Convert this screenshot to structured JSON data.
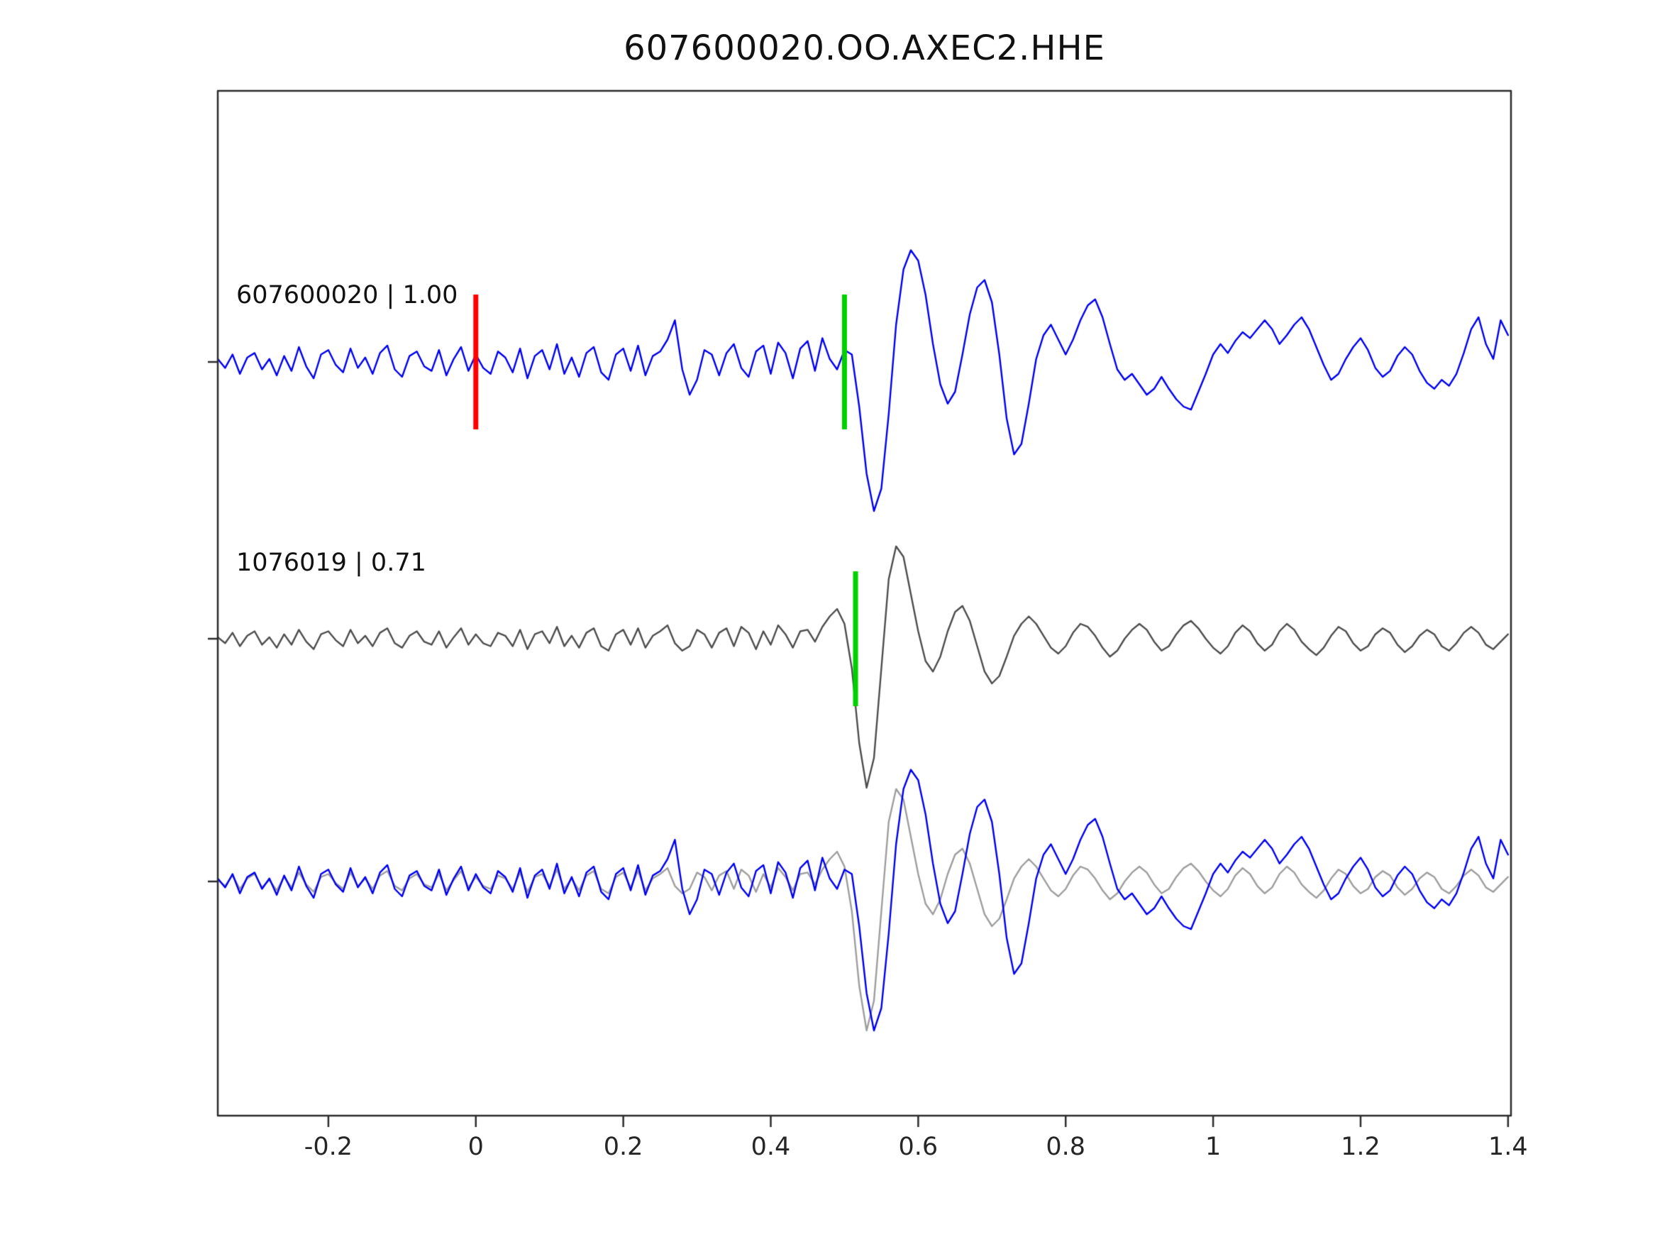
{
  "figure": {
    "background": "#ffffff",
    "axis_color": "#2b2b2b",
    "tick_label_color": "#262626",
    "title_color": "#111111"
  },
  "chart_data": {
    "type": "line",
    "title": "607600020.OO.AXEC2.HHE",
    "xlabel": "",
    "ylabel": "",
    "grid": false,
    "legend": "none",
    "xlim": [
      -0.35,
      1.404
    ],
    "x_ticks": [
      -0.2,
      0,
      0.2,
      0.4,
      0.6,
      0.8,
      1,
      1.2,
      1.4
    ],
    "x_tick_labels": [
      "-0.2",
      "0",
      "0.2",
      "0.4",
      "0.6",
      "0.8",
      "1",
      "1.2",
      "1.4"
    ],
    "x_start": -0.35,
    "dt": 0.01,
    "panels": [
      {
        "id": "top",
        "label": "607600020 | 1.00",
        "station_id": "607600020",
        "correlation": 1.0,
        "traces": [
          {
            "series": "reference",
            "color": "#0000ee"
          }
        ],
        "markers": [
          {
            "x": 0.0,
            "color": "#ff0000"
          },
          {
            "x": 0.5,
            "color": "#00cf00"
          }
        ]
      },
      {
        "id": "middle",
        "label": "1076019 | 0.71",
        "station_id": "1076019",
        "correlation": 0.71,
        "traces": [
          {
            "series": "match",
            "color": "#4d4d4d"
          }
        ],
        "markers": [
          {
            "x": 0.515,
            "color": "#00cf00"
          }
        ]
      },
      {
        "id": "bottom",
        "label": "",
        "traces": [
          {
            "series": "match",
            "color": "#9e9e9e"
          },
          {
            "series": "reference",
            "color": "#0000ee"
          }
        ],
        "markers": []
      }
    ],
    "series": {
      "reference": {
        "name": "reference",
        "color": "#0000ee",
        "values": [
          0.02,
          -0.04,
          0.05,
          -0.08,
          0.03,
          0.06,
          -0.05,
          0.02,
          -0.09,
          0.04,
          -0.06,
          0.1,
          -0.03,
          -0.11,
          0.05,
          0.08,
          -0.02,
          -0.07,
          0.09,
          -0.04,
          0.03,
          -0.08,
          0.06,
          0.11,
          -0.05,
          -0.1,
          0.04,
          0.07,
          -0.03,
          -0.06,
          0.08,
          -0.09,
          0.02,
          0.1,
          -0.06,
          0.05,
          -0.04,
          -0.08,
          0.07,
          0.03,
          -0.07,
          0.09,
          -0.11,
          0.04,
          0.08,
          -0.05,
          0.12,
          -0.08,
          0.03,
          -0.1,
          0.06,
          0.1,
          -0.07,
          -0.12,
          0.05,
          0.09,
          -0.06,
          0.11,
          -0.09,
          0.04,
          0.07,
          0.15,
          0.28,
          -0.05,
          -0.22,
          -0.12,
          0.08,
          0.05,
          -0.09,
          0.06,
          0.12,
          -0.04,
          -0.1,
          0.07,
          0.11,
          -0.08,
          0.13,
          0.06,
          -0.11,
          0.09,
          0.14,
          -0.06,
          0.16,
          0.02,
          -0.05,
          0.08,
          0.05,
          -0.3,
          -0.75,
          -1.0,
          -0.85,
          -0.35,
          0.25,
          0.62,
          0.75,
          0.68,
          0.45,
          0.12,
          -0.15,
          -0.28,
          -0.2,
          0.05,
          0.32,
          0.5,
          0.55,
          0.4,
          0.05,
          -0.38,
          -0.62,
          -0.55,
          -0.28,
          0.02,
          0.18,
          0.25,
          0.15,
          0.05,
          0.15,
          0.28,
          0.38,
          0.42,
          0.3,
          0.12,
          -0.05,
          -0.12,
          -0.08,
          -0.15,
          -0.22,
          -0.18,
          -0.1,
          -0.18,
          -0.25,
          -0.3,
          -0.32,
          -0.2,
          -0.08,
          0.05,
          0.12,
          0.06,
          0.14,
          0.2,
          0.16,
          0.22,
          0.28,
          0.22,
          0.12,
          0.18,
          0.25,
          0.3,
          0.22,
          0.1,
          -0.02,
          -0.12,
          -0.08,
          0.02,
          0.1,
          0.16,
          0.08,
          -0.04,
          -0.1,
          -0.06,
          0.04,
          0.1,
          0.05,
          -0.06,
          -0.14,
          -0.18,
          -0.12,
          -0.16,
          -0.08,
          0.06,
          0.22,
          0.3,
          0.12,
          0.02,
          0.28,
          0.18
        ]
      },
      "match": {
        "name": "match",
        "color": "#4d4d4d",
        "values": [
          0.01,
          -0.03,
          0.04,
          -0.05,
          0.02,
          0.05,
          -0.04,
          0.01,
          -0.06,
          0.03,
          -0.04,
          0.06,
          -0.02,
          -0.07,
          0.03,
          0.05,
          -0.01,
          -0.05,
          0.06,
          -0.03,
          0.02,
          -0.05,
          0.04,
          0.07,
          -0.03,
          -0.06,
          0.02,
          0.05,
          -0.02,
          -0.04,
          0.05,
          -0.06,
          0.01,
          0.07,
          -0.04,
          0.03,
          -0.03,
          -0.05,
          0.04,
          0.02,
          -0.05,
          0.06,
          -0.07,
          0.03,
          0.05,
          -0.03,
          0.08,
          -0.05,
          0.02,
          -0.06,
          0.04,
          0.07,
          -0.05,
          -0.08,
          0.03,
          0.06,
          -0.04,
          0.07,
          -0.06,
          0.02,
          0.05,
          0.09,
          -0.03,
          -0.08,
          -0.05,
          0.06,
          0.03,
          -0.06,
          0.04,
          0.07,
          -0.05,
          0.08,
          0.04,
          -0.07,
          0.05,
          -0.04,
          0.09,
          0.03,
          -0.06,
          0.05,
          0.06,
          -0.02,
          0.08,
          0.15,
          0.2,
          0.1,
          -0.2,
          -0.7,
          -1.0,
          -0.8,
          -0.2,
          0.4,
          0.62,
          0.55,
          0.3,
          0.05,
          -0.15,
          -0.22,
          -0.12,
          0.05,
          0.18,
          0.22,
          0.12,
          -0.05,
          -0.22,
          -0.3,
          -0.25,
          -0.12,
          0.02,
          0.1,
          0.15,
          0.1,
          0.02,
          -0.06,
          -0.1,
          -0.05,
          0.04,
          0.1,
          0.08,
          0.02,
          -0.06,
          -0.12,
          -0.08,
          0.0,
          0.06,
          0.1,
          0.06,
          -0.02,
          -0.08,
          -0.05,
          0.03,
          0.09,
          0.12,
          0.07,
          0.0,
          -0.06,
          -0.1,
          -0.05,
          0.04,
          0.09,
          0.05,
          -0.03,
          -0.08,
          -0.04,
          0.05,
          0.1,
          0.06,
          -0.02,
          -0.07,
          -0.11,
          -0.06,
          0.02,
          0.08,
          0.05,
          -0.03,
          -0.08,
          -0.05,
          0.03,
          0.07,
          0.04,
          -0.04,
          -0.09,
          -0.05,
          0.02,
          0.06,
          0.03,
          -0.05,
          -0.08,
          -0.03,
          0.04,
          0.08,
          0.04,
          -0.04,
          -0.07,
          -0.02,
          0.03
        ]
      }
    }
  }
}
